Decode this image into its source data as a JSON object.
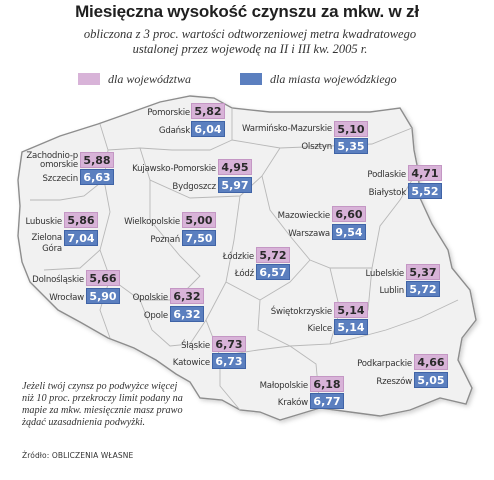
{
  "title": "Miesięczna wysokość czynszu za mkw. w zł",
  "subtitle_line1": "obliczona z 3 proc. wartości odtworzeniowej metra kwadratowego",
  "subtitle_line2": "ustalonej przez wojewodę na II i III kw. 2005 r.",
  "legend": {
    "voivodeship_label": "dla województwa",
    "city_label": "dla miasta wojewódzkiego",
    "voivodeship_color": "#d8b3d8",
    "city_color": "#5b7fbf"
  },
  "regions": [
    {
      "voivodeship": "Pomorskie",
      "voivodeship_value": "5,82",
      "city": "Gdańsk",
      "city_value": "6,04"
    },
    {
      "voivodeship": "Warmińsko-Mazurskie",
      "voivodeship_value": "5,10",
      "city": "Olsztyn",
      "city_value": "5,35"
    },
    {
      "voivodeship": "Zachodnio-pomorskie",
      "voivodeship_value": "5,88",
      "city": "Szczecin",
      "city_value": "6,63"
    },
    {
      "voivodeship": "Kujawsko-Pomorskie",
      "voivodeship_value": "4,95",
      "city": "Bydgoszcz",
      "city_value": "5,97"
    },
    {
      "voivodeship": "Podlaskie",
      "voivodeship_value": "4,71",
      "city": "Białystok",
      "city_value": "5,52"
    },
    {
      "voivodeship": "Lubuskie",
      "voivodeship_value": "5,86",
      "city": "Zielona Góra",
      "city_value": "7,04"
    },
    {
      "voivodeship": "Wielkopolskie",
      "voivodeship_value": "5,00",
      "city": "Poznań",
      "city_value": "7,50"
    },
    {
      "voivodeship": "Mazowieckie",
      "voivodeship_value": "6,60",
      "city": "Warszawa",
      "city_value": "9,54"
    },
    {
      "voivodeship": "Łódzkie",
      "voivodeship_value": "5,72",
      "city": "Łódź",
      "city_value": "6,57"
    },
    {
      "voivodeship": "Dolnośląskie",
      "voivodeship_value": "5,66",
      "city": "Wrocław",
      "city_value": "5,90"
    },
    {
      "voivodeship": "Opolskie",
      "voivodeship_value": "6,32",
      "city": "Opole",
      "city_value": "6,32"
    },
    {
      "voivodeship": "Lubelskie",
      "voivodeship_value": "5,37",
      "city": "Lublin",
      "city_value": "5,72"
    },
    {
      "voivodeship": "Świętokrzyskie",
      "voivodeship_value": "5,14",
      "city": "Kielce",
      "city_value": "5,14"
    },
    {
      "voivodeship": "Śląskie",
      "voivodeship_value": "6,73",
      "city": "Katowice",
      "city_value": "6,73"
    },
    {
      "voivodeship": "Małopolskie",
      "voivodeship_value": "6,18",
      "city": "Kraków",
      "city_value": "6,77"
    },
    {
      "voivodeship": "Podkarpackie",
      "voivodeship_value": "4,66",
      "city": "Rzeszów",
      "city_value": "5,05"
    }
  ],
  "note": "Jeżeli twój czynsz po podwyżce więcej niż 10 proc. przekroczy limit podany na mapie za mkw. miesięcznie masz prawo żądać uzasadnienia podwyżki.",
  "source": "Źródło: OBLICZENIA WŁASNE"
}
